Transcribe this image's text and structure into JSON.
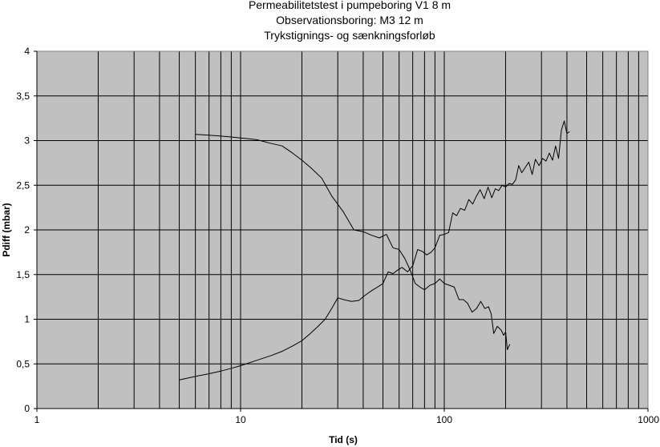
{
  "chart_data": {
    "type": "line",
    "title_lines": [
      "Permeabilitetstest i pumpeboring V1 8 m",
      "Observationsboring: M3 12 m",
      "Trykstignings- og sænkningsforløb"
    ],
    "xlabel": "Tid (s)",
    "ylabel": "Pdiff (mbar)",
    "x_scale": "log",
    "xlim": [
      1,
      1000
    ],
    "ylim": [
      0,
      4
    ],
    "x_ticks": [
      1,
      10,
      100,
      1000
    ],
    "x_tick_labels": [
      "1",
      "10",
      "100",
      "1000"
    ],
    "y_ticks": [
      0,
      0.5,
      1,
      1.5,
      2,
      2.5,
      3,
      3.5,
      4
    ],
    "y_tick_labels": [
      "0",
      "0,5",
      "1",
      "1,5",
      "2",
      "2,5",
      "3",
      "3,5",
      "4"
    ],
    "grid": true,
    "plot_background": "#c0c0c0",
    "line_color": "#000000",
    "series": [
      {
        "x": [
          5,
          6,
          7,
          8,
          9,
          10,
          12,
          14,
          16,
          18,
          20,
          22,
          24,
          26,
          28,
          30,
          32,
          35,
          38,
          41,
          44,
          47,
          50,
          53,
          56,
          59,
          62,
          66,
          70,
          74,
          78,
          82,
          86,
          90,
          95,
          100,
          105,
          110,
          115,
          120,
          126,
          132,
          138,
          144,
          150,
          157,
          164,
          171,
          178,
          185,
          192,
          200,
          208,
          216,
          224,
          232,
          240,
          250,
          260,
          270,
          280,
          292,
          304,
          316,
          328,
          340,
          352,
          364,
          376,
          388,
          400,
          412
        ],
        "values": [
          0.32,
          0.36,
          0.39,
          0.42,
          0.45,
          0.48,
          0.54,
          0.59,
          0.64,
          0.7,
          0.76,
          0.84,
          0.92,
          1.0,
          1.12,
          1.24,
          1.22,
          1.2,
          1.21,
          1.27,
          1.32,
          1.36,
          1.4,
          1.53,
          1.51,
          1.55,
          1.58,
          1.53,
          1.6,
          1.78,
          1.76,
          1.72,
          1.75,
          1.8,
          1.94,
          1.95,
          1.97,
          2.19,
          2.16,
          2.24,
          2.22,
          2.34,
          2.29,
          2.38,
          2.45,
          2.35,
          2.48,
          2.36,
          2.46,
          2.44,
          2.5,
          2.48,
          2.52,
          2.51,
          2.56,
          2.72,
          2.64,
          2.7,
          2.76,
          2.62,
          2.79,
          2.72,
          2.8,
          2.77,
          2.86,
          2.78,
          2.94,
          2.8,
          3.12,
          3.22,
          3.08,
          3.1
        ]
      },
      {
        "x": [
          6,
          7,
          8,
          9,
          10,
          11,
          12,
          13,
          14,
          16,
          18,
          20,
          22,
          25,
          28,
          32,
          36,
          40,
          44,
          48,
          52,
          56,
          60,
          64,
          68,
          72,
          76,
          80,
          85,
          90,
          95,
          100,
          106,
          112,
          118,
          124,
          130,
          137,
          144,
          151,
          158,
          165,
          170,
          175,
          182,
          190,
          196,
          200,
          204,
          210
        ],
        "values": [
          3.07,
          3.06,
          3.05,
          3.04,
          3.03,
          3.02,
          3.01,
          2.99,
          2.97,
          2.94,
          2.86,
          2.78,
          2.7,
          2.58,
          2.38,
          2.2,
          2.0,
          1.98,
          1.94,
          1.91,
          1.95,
          1.8,
          1.78,
          1.68,
          1.55,
          1.4,
          1.36,
          1.33,
          1.38,
          1.4,
          1.45,
          1.4,
          1.38,
          1.36,
          1.22,
          1.22,
          1.18,
          1.08,
          1.12,
          1.2,
          1.12,
          1.14,
          1.06,
          0.84,
          0.92,
          0.88,
          0.82,
          0.86,
          0.66,
          0.72
        ]
      }
    ]
  }
}
